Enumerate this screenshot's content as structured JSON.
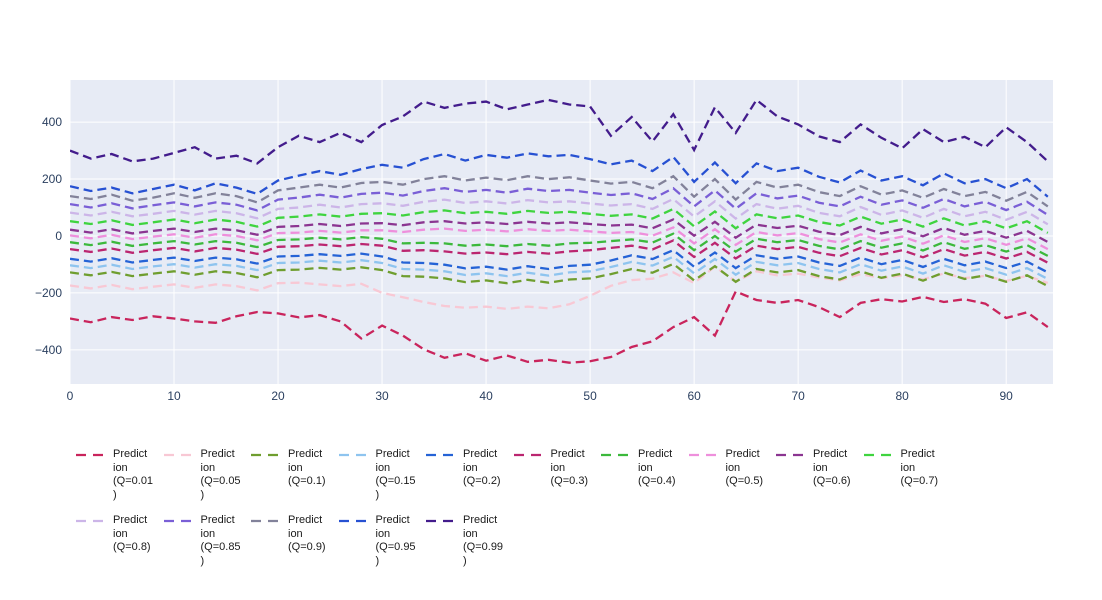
{
  "colors": {
    "plot_bg": "#e7ebf5",
    "grid": "#ffffff",
    "tick_text": "#2a3f5f",
    "legend_text": "#1a1a1a"
  },
  "chart_data": {
    "type": "line",
    "title": "",
    "xlabel": "",
    "ylabel": "",
    "line_style": "dashed",
    "grid": true,
    "legend_position": "bottom",
    "plot_bgcolor": "#e7ebf5",
    "grid_color": "#ffffff",
    "x_tick_labels": [
      "0",
      "10",
      "20",
      "30",
      "40",
      "50",
      "60",
      "70",
      "80",
      "90"
    ],
    "x_tick_values": [
      0,
      10,
      20,
      30,
      40,
      50,
      60,
      70,
      80,
      90
    ],
    "y_tick_labels": [
      "400",
      "200",
      "0",
      "−200",
      "−400"
    ],
    "y_tick_values": [
      400,
      200,
      0,
      -200,
      -400
    ],
    "x_range": [
      0,
      94.5
    ],
    "y_range": [
      -520,
      548
    ],
    "x_start": 0,
    "x_step": 2,
    "series": [
      {
        "name": "Prediction (Q=0.01)",
        "color": "#c9245c",
        "legend_lines": [
          "Predict",
          "ion",
          "(Q=0.01",
          ")"
        ],
        "values": [
          -290,
          -303,
          -285,
          -295,
          -282,
          -290,
          -300,
          -305,
          -282,
          -267,
          -272,
          -286,
          -278,
          -300,
          -360,
          -315,
          -350,
          -398,
          -428,
          -412,
          -438,
          -420,
          -442,
          -435,
          -445,
          -440,
          -425,
          -390,
          -370,
          -320,
          -285,
          -350,
          -195,
          -225,
          -235,
          -225,
          -250,
          -285,
          -235,
          -222,
          -230,
          -214,
          -232,
          -222,
          -238,
          -288,
          -268,
          -320
        ]
      },
      {
        "name": "Prediction (Q=0.05)",
        "color": "#f8c8d4",
        "legend_lines": [
          "Predict",
          "ion",
          "(Q=0.05",
          ")"
        ],
        "values": [
          -174,
          -184,
          -172,
          -187,
          -178,
          -170,
          -182,
          -170,
          -176,
          -191,
          -166,
          -164,
          -170,
          -176,
          -168,
          -200,
          -215,
          -232,
          -246,
          -252,
          -248,
          -256,
          -248,
          -254,
          -240,
          -210,
          -175,
          -155,
          -150,
          -128,
          -165,
          -108,
          -160,
          -124,
          -138,
          -132,
          -146,
          -156,
          -134,
          -148,
          -138,
          -152,
          -132,
          -148,
          -140,
          -158,
          -140,
          -165
        ]
      },
      {
        "name": "Prediction (Q=0.1)",
        "color": "#6f9e2f",
        "legend_lines": [
          "Predict",
          "ion",
          "(Q=0.1)"
        ],
        "values": [
          -128,
          -138,
          -126,
          -141,
          -132,
          -124,
          -136,
          -124,
          -130,
          -145,
          -120,
          -118,
          -112,
          -118,
          -110,
          -120,
          -141,
          -143,
          -149,
          -162,
          -156,
          -166,
          -154,
          -164,
          -153,
          -149,
          -134,
          -116,
          -129,
          -98,
          -156,
          -106,
          -161,
          -116,
          -128,
          -120,
          -141,
          -153,
          -124,
          -147,
          -132,
          -157,
          -128,
          -151,
          -138,
          -161,
          -138,
          -176
        ]
      },
      {
        "name": "Prediction (Q=0.15)",
        "color": "#8ec4ef",
        "legend_lines": [
          "Predict",
          "ion",
          "(Q=0.15",
          ")"
        ],
        "values": [
          -103,
          -113,
          -101,
          -116,
          -107,
          -99,
          -111,
          -99,
          -105,
          -120,
          -95,
          -93,
          -87,
          -93,
          -85,
          -95,
          -116,
          -118,
          -124,
          -137,
          -131,
          -141,
          -129,
          -139,
          -128,
          -124,
          -109,
          -91,
          -104,
          -73,
          -131,
          -81,
          -136,
          -91,
          -103,
          -95,
          -116,
          -128,
          -99,
          -122,
          -107,
          -132,
          -103,
          -126,
          -113,
          -136,
          -113,
          -151
        ]
      },
      {
        "name": "Prediction (Q=0.2)",
        "color": "#2563d6",
        "legend_lines": [
          "Predict",
          "ion",
          "(Q=0.2)"
        ],
        "values": [
          -80,
          -90,
          -78,
          -93,
          -84,
          -76,
          -88,
          -76,
          -82,
          -97,
          -72,
          -70,
          -64,
          -70,
          -62,
          -72,
          -93,
          -95,
          -101,
          -114,
          -108,
          -118,
          -106,
          -116,
          -105,
          -101,
          -86,
          -68,
          -81,
          -50,
          -108,
          -58,
          -113,
          -68,
          -80,
          -72,
          -93,
          -105,
          -76,
          -99,
          -84,
          -109,
          -80,
          -103,
          -90,
          -113,
          -90,
          -128
        ]
      },
      {
        "name": "Prediction (Q=0.3)",
        "color": "#bb2670",
        "legend_lines": [
          "Predict",
          "ion",
          "(Q=0.3)"
        ],
        "values": [
          -46,
          -56,
          -44,
          -59,
          -50,
          -42,
          -54,
          -42,
          -48,
          -63,
          -38,
          -36,
          -30,
          -36,
          -28,
          -34,
          -52,
          -50,
          -54,
          -62,
          -58,
          -64,
          -56,
          -62,
          -54,
          -50,
          -42,
          -34,
          -47,
          -16,
          -74,
          -24,
          -79,
          -34,
          -46,
          -38,
          -59,
          -71,
          -42,
          -65,
          -50,
          -75,
          -46,
          -69,
          -56,
          -79,
          -56,
          -94
        ]
      },
      {
        "name": "Prediction (Q=0.4)",
        "color": "#3cb93c",
        "legend_lines": [
          "Predict",
          "ion",
          "(Q=0.4)"
        ],
        "values": [
          -22,
          -32,
          -20,
          -35,
          -26,
          -18,
          -30,
          -18,
          -24,
          -39,
          -14,
          -12,
          -6,
          -12,
          -4,
          -10,
          -26,
          -24,
          -26,
          -34,
          -30,
          -36,
          -28,
          -34,
          -26,
          -24,
          -18,
          -12,
          -23,
          8,
          -50,
          0,
          -55,
          -10,
          -22,
          -14,
          -35,
          -47,
          -18,
          -41,
          -26,
          -51,
          -22,
          -45,
          -32,
          -55,
          -32,
          -70
        ]
      },
      {
        "name": "Prediction (Q=0.5)",
        "color": "#ee8fdc",
        "legend_lines": [
          "Predict",
          "ion",
          "(Q=0.5)"
        ],
        "values": [
          2,
          -8,
          4,
          -11,
          -2,
          6,
          -6,
          6,
          0,
          -15,
          10,
          12,
          18,
          12,
          20,
          20,
          14,
          22,
          26,
          18,
          22,
          16,
          24,
          18,
          22,
          16,
          11,
          14,
          1,
          30,
          -26,
          24,
          -31,
          14,
          2,
          10,
          -11,
          -23,
          6,
          -17,
          -2,
          -27,
          2,
          -21,
          -8,
          -31,
          -8,
          -46
        ]
      },
      {
        "name": "Prediction (Q=0.6)",
        "color": "#8b3591",
        "legend_lines": [
          "Predict",
          "ion",
          "(Q=0.6)"
        ],
        "values": [
          22,
          12,
          24,
          9,
          18,
          26,
          14,
          26,
          20,
          4,
          32,
          35,
          42,
          35,
          44,
          45,
          38,
          48,
          52,
          44,
          48,
          42,
          50,
          44,
          48,
          42,
          37,
          40,
          27,
          58,
          1,
          50,
          -6,
          40,
          28,
          36,
          15,
          3,
          32,
          9,
          24,
          -1,
          28,
          4,
          18,
          -6,
          18,
          -21
        ]
      },
      {
        "name": "Prediction (Q=0.7)",
        "color": "#3fd43f",
        "legend_lines": [
          "Predict",
          "ion",
          "(Q=0.7)"
        ],
        "values": [
          52,
          42,
          55,
          39,
          48,
          58,
          45,
          58,
          50,
          33,
          64,
          68,
          76,
          68,
          78,
          80,
          72,
          84,
          90,
          80,
          85,
          78,
          88,
          81,
          85,
          78,
          71,
          76,
          61,
          95,
          34,
          86,
          27,
          76,
          62,
          72,
          49,
          37,
          68,
          43,
          58,
          33,
          62,
          37,
          52,
          27,
          52,
          11
        ]
      },
      {
        "name": "Prediction (Q=0.8)",
        "color": "#ccb5e8",
        "legend_lines": [
          "Predict",
          "ion",
          "(Q=0.8)"
        ],
        "values": [
          82,
          72,
          85,
          69,
          78,
          88,
          75,
          88,
          80,
          62,
          95,
          100,
          110,
          100,
          112,
          115,
          106,
          120,
          128,
          116,
          122,
          114,
          126,
          118,
          122,
          114,
          107,
          112,
          95,
          130,
          68,
          122,
          61,
          112,
          96,
          106,
          81,
          69,
          102,
          74,
          90,
          64,
          95,
          69,
          85,
          57,
          85,
          41
        ]
      },
      {
        "name": "Prediction (Q=0.85)",
        "color": "#7a5fd6",
        "legend_lines": [
          "Predict",
          "ion",
          "(Q=0.85",
          ")"
        ],
        "values": [
          112,
          100,
          115,
          97,
          108,
          118,
          104,
          118,
          110,
          90,
          128,
          135,
          145,
          135,
          148,
          152,
          142,
          158,
          168,
          155,
          162,
          152,
          166,
          158,
          162,
          152,
          144,
          150,
          130,
          168,
          104,
          160,
          96,
          150,
          132,
          142,
          117,
          104,
          138,
          110,
          125,
          99,
          130,
          104,
          120,
          91,
          120,
          74
        ]
      },
      {
        "name": "Prediction (Q=0.9)",
        "color": "#82829a",
        "legend_lines": [
          "Predict",
          "ion",
          "(Q=0.9)"
        ],
        "values": [
          140,
          130,
          145,
          124,
          135,
          150,
          134,
          150,
          140,
          118,
          160,
          170,
          180,
          170,
          186,
          190,
          180,
          200,
          210,
          195,
          205,
          196,
          210,
          200,
          206,
          195,
          184,
          190,
          168,
          210,
          138,
          200,
          128,
          190,
          170,
          180,
          154,
          140,
          175,
          145,
          160,
          134,
          165,
          140,
          155,
          124,
          155,
          104
        ]
      },
      {
        "name": "Prediction (Q=0.95)",
        "color": "#2751d2",
        "legend_lines": [
          "Predict",
          "ion",
          "(Q=0.95",
          ")"
        ],
        "values": [
          175,
          158,
          170,
          150,
          165,
          180,
          160,
          185,
          170,
          148,
          195,
          212,
          228,
          215,
          235,
          250,
          240,
          270,
          288,
          265,
          285,
          275,
          290,
          280,
          285,
          270,
          252,
          265,
          228,
          278,
          190,
          258,
          185,
          255,
          228,
          240,
          208,
          188,
          230,
          195,
          210,
          178,
          220,
          185,
          200,
          168,
          200,
          138
        ]
      },
      {
        "name": "Prediction (Q=0.99)",
        "color": "#431c8c",
        "legend_lines": [
          "Predict",
          "ion",
          "(Q=0.99",
          ")"
        ],
        "values": [
          300,
          272,
          288,
          262,
          272,
          292,
          312,
          272,
          282,
          255,
          312,
          352,
          330,
          362,
          330,
          390,
          420,
          472,
          450,
          465,
          472,
          445,
          462,
          478,
          462,
          455,
          352,
          418,
          332,
          428,
          302,
          452,
          362,
          478,
          420,
          392,
          350,
          330,
          392,
          345,
          308,
          375,
          330,
          348,
          312,
          382,
          330,
          262
        ]
      }
    ]
  }
}
